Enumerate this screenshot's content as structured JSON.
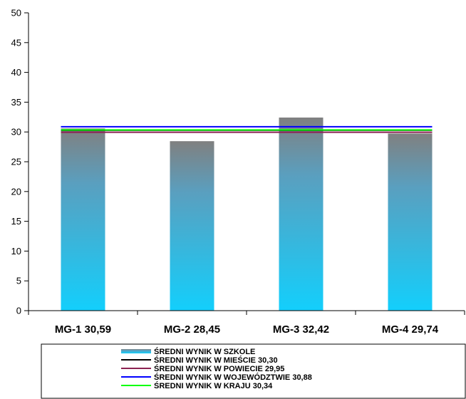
{
  "chart_data": {
    "type": "bar",
    "title": "",
    "xlabel": "",
    "ylabel": "",
    "ylim": [
      0,
      50
    ],
    "yticks": [
      0,
      5,
      10,
      15,
      20,
      25,
      30,
      35,
      40,
      45,
      50
    ],
    "categories": [
      "MG-1 30,59",
      "MG-2 28,45",
      "MG-3 32,42",
      "MG-4 29,74"
    ],
    "values": [
      30.59,
      28.45,
      32.42,
      29.74
    ],
    "bar_series_name": "ŚREDNI WYNIK W SZKOLE",
    "bar_gradient": {
      "top": "#808080",
      "bottom": "#13cffc"
    },
    "reference_lines": [
      {
        "name": "ŚREDNI WYNIK W MIEŚCIE 30,30",
        "value": 30.3,
        "color": "#000000"
      },
      {
        "name": "ŚREDNI WYNIK W POWIECIE 29,95",
        "value": 29.95,
        "color": "#8b2252"
      },
      {
        "name": "ŚREDNI WYNIK W WOJEWÓDZTWIE 30,88",
        "value": 30.88,
        "color": "#0000ff"
      },
      {
        "name": "ŚREDNI WYNIK W KRAJU 30,34",
        "value": 30.34,
        "color": "#00ff00"
      }
    ],
    "grid": false,
    "legend_position": "bottom"
  }
}
